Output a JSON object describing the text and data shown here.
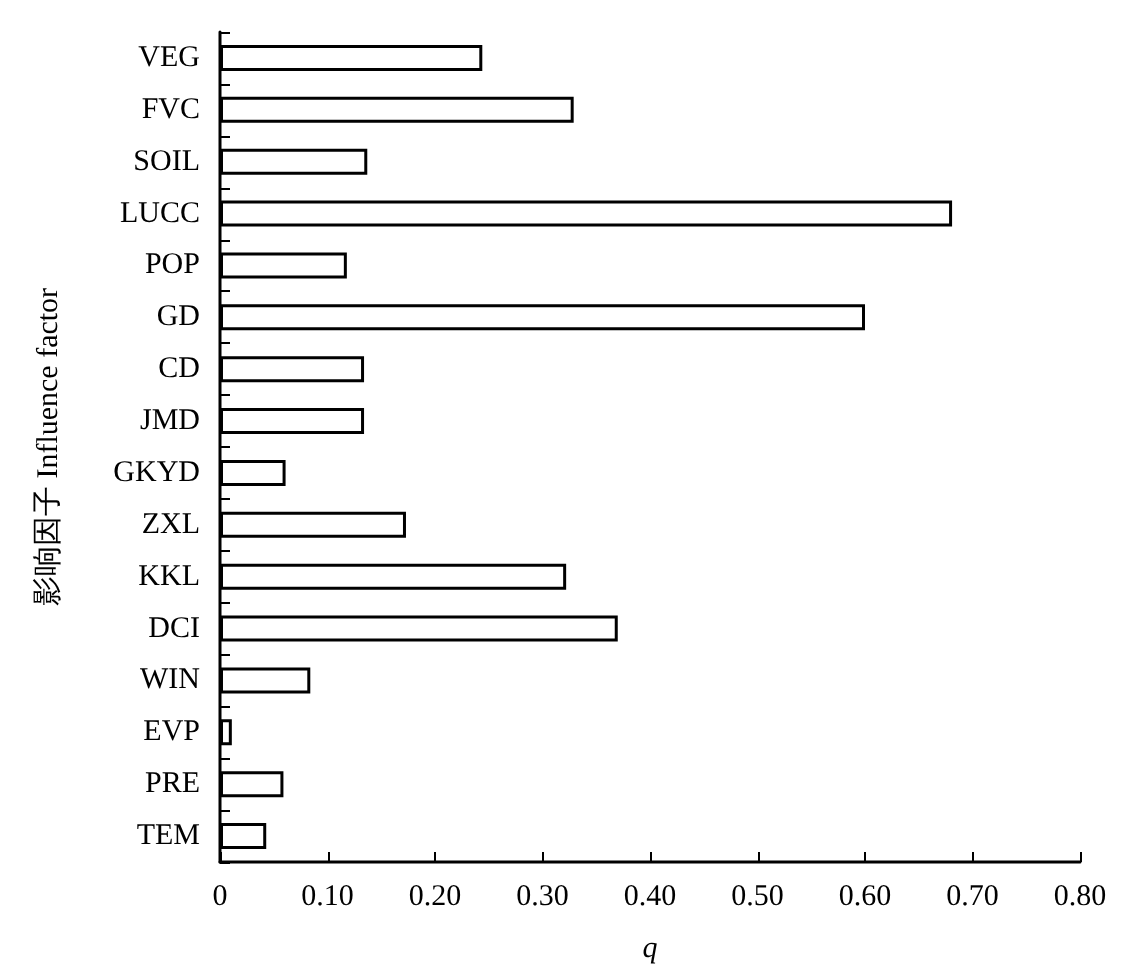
{
  "chart_data": {
    "type": "bar",
    "orientation": "horizontal",
    "xlabel": "q",
    "ylabel": "影响因子 Influence factor",
    "categories": [
      "VEG",
      "FVC",
      "SOIL",
      "LUCC",
      "POP",
      "GD",
      "CD",
      "JMD",
      "GKYD",
      "ZXL",
      "KKL",
      "DCI",
      "WIN",
      "EVP",
      "PRE",
      "TEM"
    ],
    "values": [
      0.244,
      0.329,
      0.137,
      0.681,
      0.118,
      0.6,
      0.134,
      0.134,
      0.061,
      0.173,
      0.322,
      0.37,
      0.084,
      0.011,
      0.059,
      0.043
    ],
    "color": "#ffffff",
    "xlim": [
      0,
      0.8
    ],
    "xticks": [
      {
        "value": 0,
        "label": "0"
      },
      {
        "value": 0.1,
        "label": "0.10"
      },
      {
        "value": 0.2,
        "label": "0.20"
      },
      {
        "value": 0.3,
        "label": "0.30"
      },
      {
        "value": 0.4,
        "label": "0.40"
      },
      {
        "value": 0.5,
        "label": "0.50"
      },
      {
        "value": 0.6,
        "label": "0.60"
      },
      {
        "value": 0.7,
        "label": "0.70"
      },
      {
        "value": 0.8,
        "label": "0.80"
      }
    ],
    "grid": false
  }
}
